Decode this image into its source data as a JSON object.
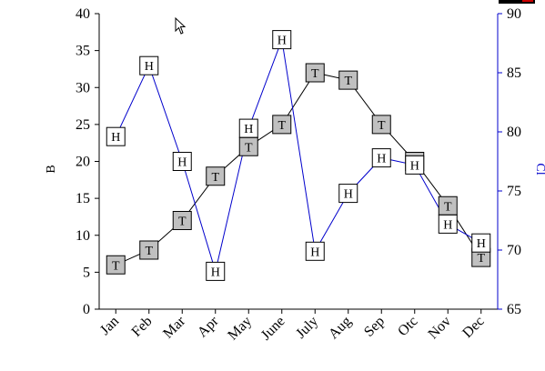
{
  "chart_data": {
    "type": "line",
    "categories": [
      "Jan",
      "Feb",
      "Mar",
      "Apr",
      "May",
      "June",
      "July",
      "Aug",
      "Sep",
      "Otc",
      "Nov",
      "Dec"
    ],
    "series": [
      {
        "name": "",
        "axis": "left",
        "marker_label": "T",
        "marker_fill": "#c0c0c0",
        "line_color": "#000000",
        "values": [
          6,
          8,
          12,
          18,
          22,
          25,
          32,
          31,
          25,
          20,
          14,
          7
        ]
      },
      {
        "name": "",
        "axis": "right",
        "marker_label": "H",
        "marker_fill": "#ffffff",
        "line_color": "#0000cc",
        "values": [
          79.6,
          85.6,
          77.5,
          68.2,
          80.3,
          87.8,
          69.9,
          74.8,
          77.8,
          77.2,
          72.2,
          70.6
        ]
      }
    ],
    "left_axis": {
      "label": "B",
      "ylim": [
        0,
        40
      ],
      "ticks": [
        "0",
        "5",
        "10",
        "15",
        "20",
        "25",
        "30",
        "35",
        "40"
      ]
    },
    "right_axis": {
      "label": "Cl",
      "ylim": [
        65,
        90
      ],
      "ticks": [
        "65",
        "70",
        "75",
        "80",
        "85",
        "90"
      ],
      "color": "#0000cc"
    },
    "grid": false,
    "legend": "none"
  }
}
